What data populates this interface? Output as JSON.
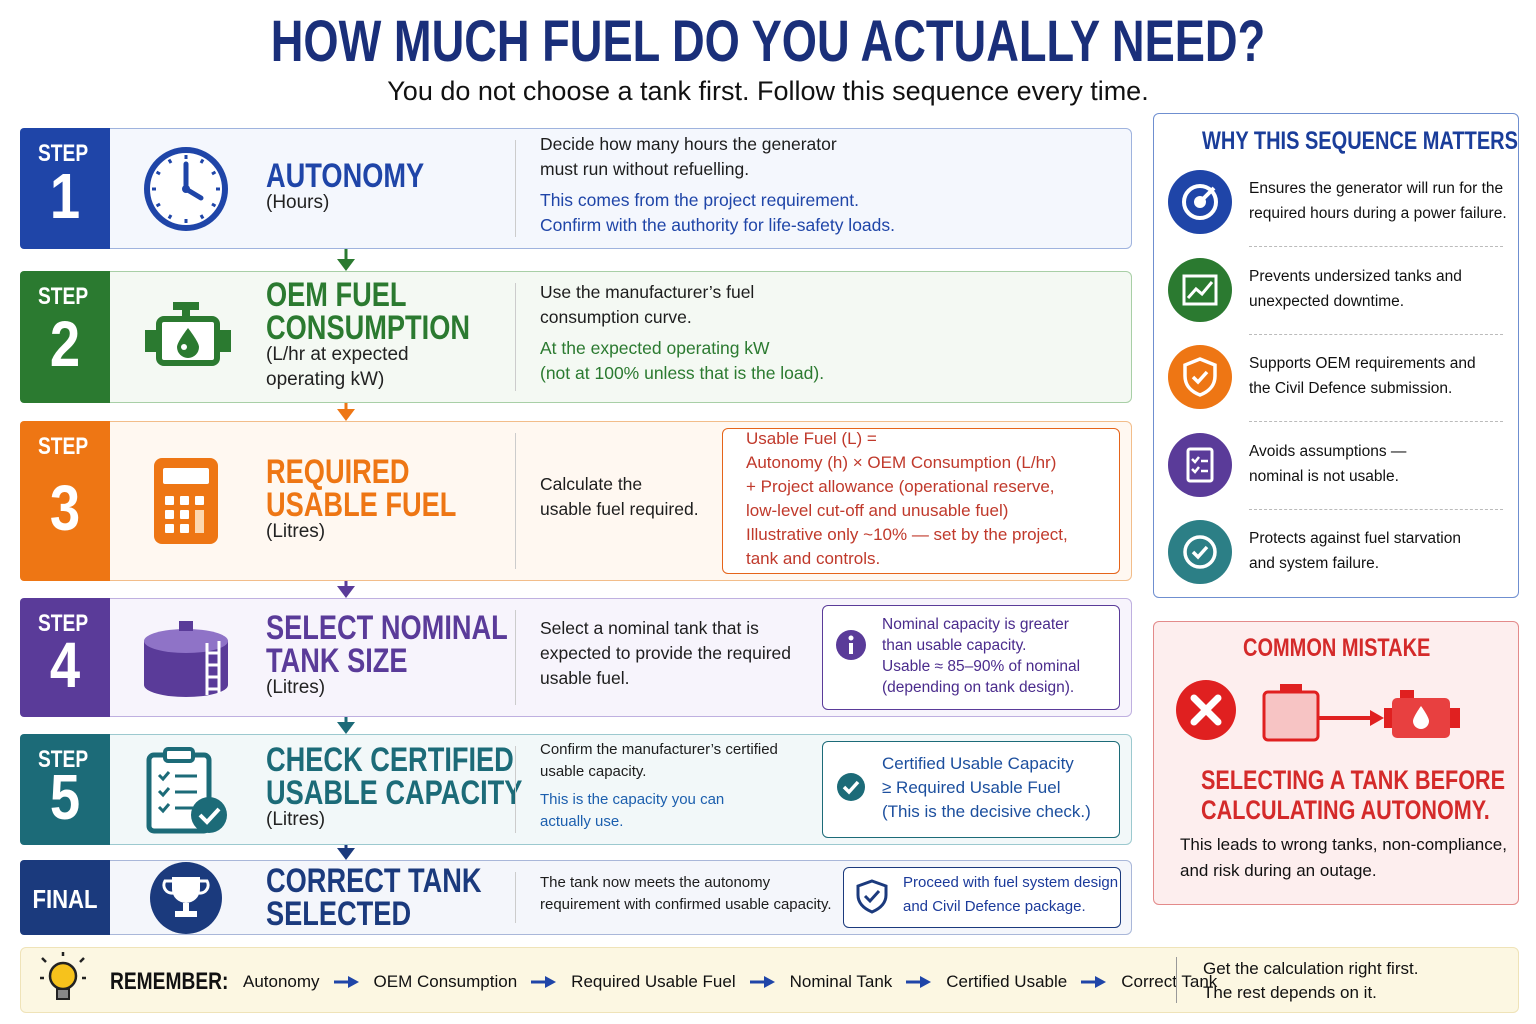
{
  "header": {
    "title": "HOW MUCH FUEL DO YOU ACTUALLY NEED?",
    "subtitle": "You do not choose a tank first. Follow this sequence every time."
  },
  "steps": [
    {
      "badge": "STEP",
      "number": "1",
      "title": [
        "AUTONOMY"
      ],
      "unit": [
        "(Hours)"
      ],
      "text": [
        "Decide how many hours the generator",
        "must run without refuelling."
      ],
      "notes": [
        "This comes from the project requirement.",
        "Confirm with the authority for life-safety loads."
      ]
    },
    {
      "badge": "STEP",
      "number": "2",
      "title": [
        "OEM FUEL",
        "CONSUMPTION"
      ],
      "unit": [
        "(L/hr at expected",
        "operating kW)"
      ],
      "text": [
        "Use the manufacturer’s fuel",
        "consumption curve."
      ],
      "notes": [
        "At the expected operating kW",
        "(not at 100% unless that is the load)."
      ]
    },
    {
      "badge": "STEP",
      "number": "3",
      "title": [
        "REQUIRED",
        "USABLE FUEL"
      ],
      "unit": [
        "(Litres)"
      ],
      "text": [
        "Calculate the",
        "usable fuel required."
      ],
      "box": [
        "Usable Fuel (L) =",
        "Autonomy (h) × OEM Consumption (L/hr)",
        "+ Project allowance (operational reserve,",
        "low-level cut-off and unusable fuel)",
        "Illustrative only ~10% — set by the project,",
        "tank and controls."
      ]
    },
    {
      "badge": "STEP",
      "number": "4",
      "title": [
        "SELECT NOMINAL",
        "TANK SIZE"
      ],
      "unit": [
        "(Litres)"
      ],
      "text": [
        "Select a nominal tank that is",
        "expected to provide the required",
        "usable fuel."
      ],
      "box": [
        "Nominal capacity is greater",
        "than usable capacity.",
        "Usable ≈ 85–90% of nominal",
        "(depending on tank design)."
      ]
    },
    {
      "badge": "STEP",
      "number": "5",
      "title": [
        "CHECK CERTIFIED",
        "USABLE CAPACITY"
      ],
      "unit": [
        "(Litres)"
      ],
      "text": [
        "Confirm the manufacturer’s certified",
        "usable capacity."
      ],
      "notes": [
        "This is the capacity you can",
        "actually use."
      ],
      "box": [
        "Certified Usable Capacity",
        "≥ Required Usable Fuel",
        "(This is the decisive check.)"
      ]
    },
    {
      "badge": "FINAL",
      "title": [
        "CORRECT TANK",
        "SELECTED"
      ],
      "text": [
        "The tank now meets the autonomy",
        "requirement with confirmed usable capacity."
      ],
      "box": [
        "Proceed with fuel system design",
        "and Civil Defence package."
      ]
    }
  ],
  "sidebar": {
    "title": "WHY THIS SEQUENCE MATTERS",
    "items": [
      [
        "Ensures the generator will run for the",
        "required hours during a power failure."
      ],
      [
        "Prevents undersized tanks and",
        "unexpected downtime."
      ],
      [
        "Supports OEM requirements and",
        "the Civil Defence submission."
      ],
      [
        "Avoids assumptions —",
        "nominal is not usable."
      ],
      [
        "Protects against fuel starvation",
        "and system failure."
      ]
    ]
  },
  "mistake": {
    "title": "COMMON MISTAKE",
    "heading": [
      "SELECTING A TANK BEFORE",
      "CALCULATING AUTONOMY."
    ],
    "text": [
      "This leads to wrong tanks, non-compliance,",
      "and risk during an outage."
    ]
  },
  "footer": {
    "label": "REMEMBER:",
    "sequence": [
      "Autonomy",
      "OEM Consumption",
      "Required Usable Fuel",
      "Nominal Tank",
      "Certified Usable",
      "Correct Tank"
    ],
    "note": [
      "Get the calculation right first.",
      "The rest depends on it."
    ]
  }
}
